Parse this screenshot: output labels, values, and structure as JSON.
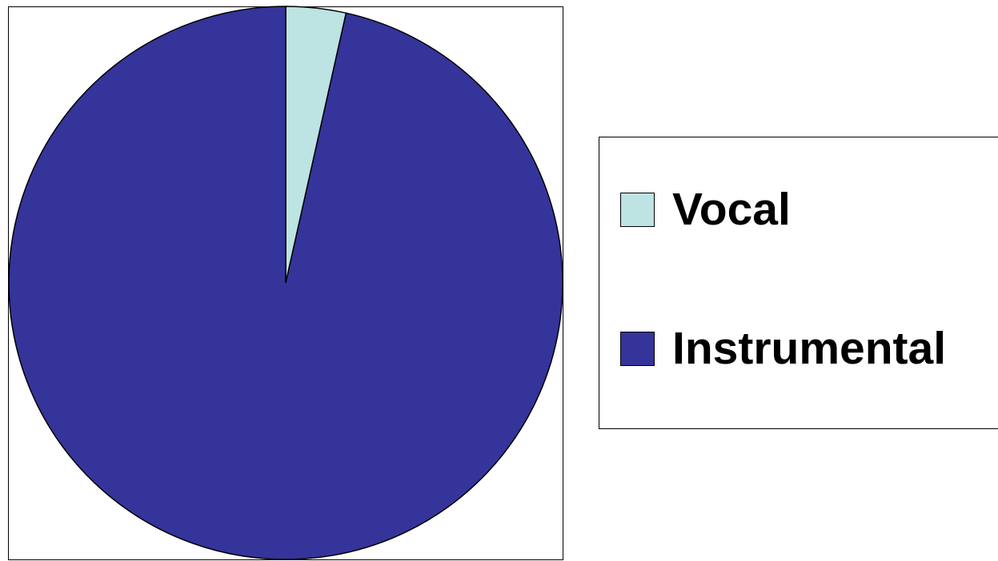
{
  "chart_data": {
    "type": "pie",
    "title": "",
    "categories": [
      "Vocal",
      "Instrumental"
    ],
    "values": [
      3.5,
      96.5
    ],
    "colors": [
      "#bde3e3",
      "#35349a"
    ],
    "start_angle": "12 o'clock",
    "direction": "clockwise",
    "legend": {
      "position": "right",
      "items": [
        {
          "label": "Vocal",
          "color": "#bde3e3"
        },
        {
          "label": "Instrumental",
          "color": "#35349a"
        }
      ]
    }
  }
}
